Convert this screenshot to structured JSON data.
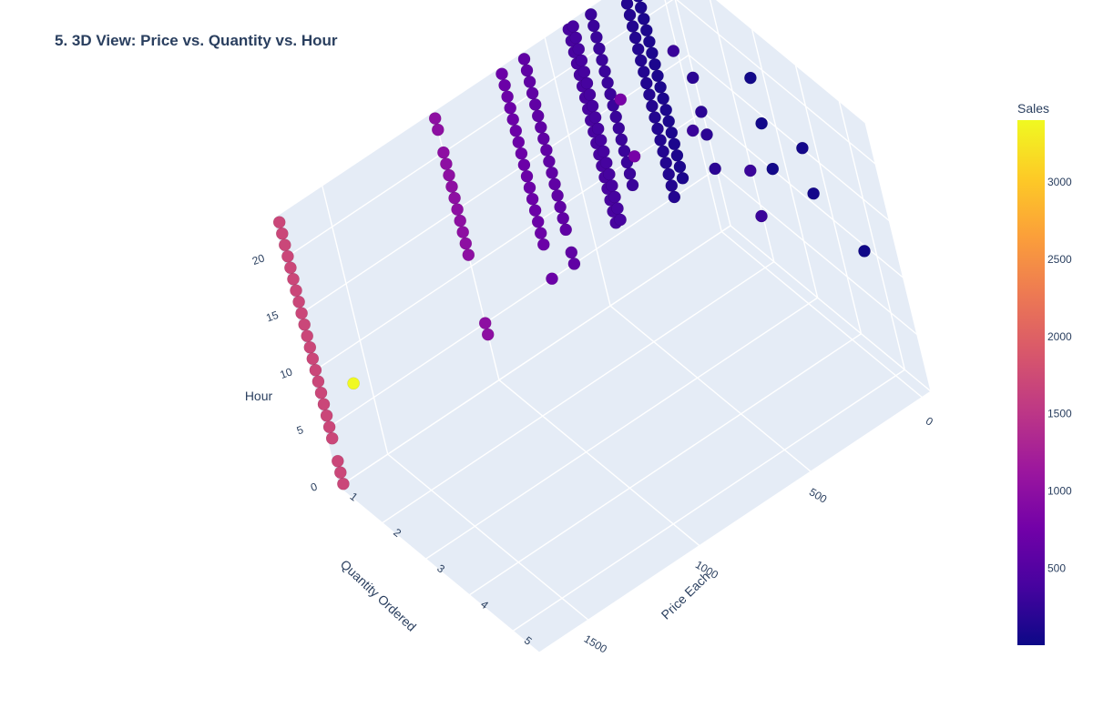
{
  "chart_data": {
    "type": "scatter3d",
    "title": "5. 3D View: Price vs. Quantity vs. Hour",
    "axes": {
      "x": {
        "label": "Quantity Ordered",
        "ticks": [
          "1",
          "2",
          "3",
          "4",
          "5"
        ]
      },
      "y": {
        "label": "Price Each",
        "ticks": [
          "0",
          "500",
          "1000",
          "1500"
        ]
      },
      "z": {
        "label": "Hour",
        "ticks": [
          "0",
          "5",
          "10",
          "15",
          "20"
        ]
      }
    },
    "colorbar": {
      "title": "Sales",
      "ticks": [
        "500",
        "1000",
        "1500",
        "2000",
        "2500",
        "3000"
      ],
      "range": [
        2.99,
        3400
      ],
      "colorscale": [
        "#0d0887",
        "#46039f",
        "#7201a8",
        "#9c179e",
        "#bd3786",
        "#d8576b",
        "#ed7953",
        "#fb9f3a",
        "#fdca26",
        "#f0f921"
      ]
    },
    "series": [
      {
        "quantity": 1,
        "price": 1700,
        "sales": 1700,
        "hours": [
          0,
          1,
          2,
          4,
          5,
          6,
          7,
          8,
          9,
          10,
          11,
          12,
          13,
          14,
          15,
          16,
          17,
          18,
          19,
          20,
          21,
          22,
          23
        ]
      },
      {
        "quantity": 2,
        "price": 1700,
        "sales": 3400,
        "hours": [
          12
        ]
      },
      {
        "quantity": 1,
        "price": 1000,
        "sales": 1000,
        "hours": [
          4,
          5,
          11,
          12,
          13,
          14,
          15,
          16,
          17,
          18,
          19,
          20,
          22,
          23
        ]
      },
      {
        "quantity": 1,
        "price": 700,
        "sales": 700,
        "hours": [
          5,
          8,
          9,
          10,
          11,
          12,
          13,
          14,
          15,
          16,
          17,
          18,
          19,
          20,
          21,
          22,
          23
        ]
      },
      {
        "quantity": 1,
        "price": 600,
        "sales": 600,
        "hours": [
          5,
          6,
          8,
          9,
          10,
          11,
          12,
          13,
          14,
          15,
          16,
          17,
          18,
          19,
          20,
          21,
          22,
          23
        ]
      },
      {
        "quantity": 1,
        "price": 400,
        "sales": 400,
        "hours": [
          6,
          7,
          8,
          9,
          10,
          11,
          12,
          13,
          14,
          15,
          16,
          17,
          18,
          19,
          20,
          21,
          22,
          23
        ]
      },
      {
        "quantity": 1,
        "price": 380,
        "sales": 380,
        "hours": [
          6,
          7,
          8,
          9,
          10,
          11,
          12,
          13,
          14,
          15,
          16,
          17,
          18,
          19,
          20,
          21,
          22,
          23
        ]
      },
      {
        "quantity": 1,
        "price": 300,
        "sales": 300,
        "hours": [
          8,
          9,
          10,
          11,
          12,
          13,
          14,
          15,
          16,
          17,
          18,
          19,
          20,
          21,
          22,
          23
        ]
      },
      {
        "quantity": 1,
        "price": 150,
        "sales": 150,
        "hours": [
          5,
          6,
          7,
          8,
          9,
          10,
          11,
          12,
          13,
          14,
          15,
          16,
          17,
          18,
          19,
          20,
          21,
          22,
          23
        ]
      },
      {
        "quantity": 1,
        "price": 100,
        "sales": 100,
        "hours": [
          6,
          7,
          8,
          9,
          10,
          11,
          12,
          13,
          14,
          15,
          16,
          17,
          18,
          19,
          20,
          21,
          22,
          23
        ]
      },
      {
        "quantity": 2,
        "price": 400,
        "sales": 800,
        "hours": [
          15,
          20
        ]
      },
      {
        "quantity": 2,
        "price": 150,
        "sales": 300,
        "hours": [
          14,
          21
        ]
      },
      {
        "quantity": 2,
        "price": 100,
        "sales": 200,
        "hours": [
          10,
          13,
          15,
          18
        ]
      },
      {
        "quantity": 3,
        "price": 100,
        "sales": 300,
        "hours": [
          9,
          13
        ]
      },
      {
        "quantity": 3,
        "price": 12,
        "sales": 36,
        "hours": [
          12,
          16,
          20
        ]
      },
      {
        "quantity": 4,
        "price": 12,
        "sales": 48,
        "hours": [
          13,
          17
        ]
      },
      {
        "quantity": 5,
        "price": 4,
        "sales": 20,
        "hours": [
          11
        ]
      }
    ]
  }
}
